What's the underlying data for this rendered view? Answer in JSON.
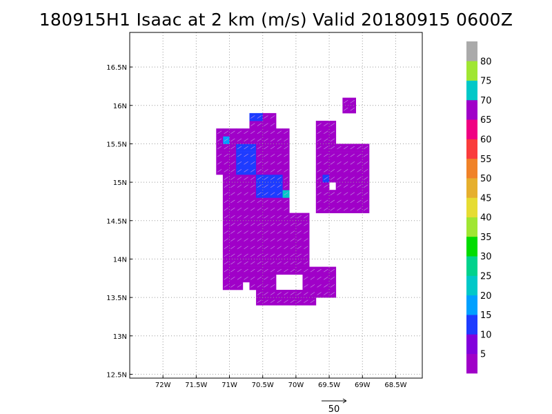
{
  "title": "180915H1 Isaac at 2 km (m/s) Valid 20180915 0600Z",
  "chart_data": {
    "type": "heatmap",
    "title": "180915H1 Isaac at 2 km (m/s) Valid 20180915 0600Z",
    "xlabel": "",
    "ylabel": "",
    "xlim": [
      -72.5,
      -68.1
    ],
    "ylim": [
      12.45,
      16.95
    ],
    "x_ticks": [
      {
        "value": -72.0,
        "label": "72W"
      },
      {
        "value": -71.5,
        "label": "71.5W"
      },
      {
        "value": -71.0,
        "label": "71W"
      },
      {
        "value": -70.5,
        "label": "70.5W"
      },
      {
        "value": -70.0,
        "label": "70W"
      },
      {
        "value": -69.5,
        "label": "69.5W"
      },
      {
        "value": -69.0,
        "label": "69W"
      },
      {
        "value": -68.5,
        "label": "68.5W"
      }
    ],
    "y_ticks": [
      {
        "value": 12.5,
        "label": "12.5N"
      },
      {
        "value": 13.0,
        "label": "13N"
      },
      {
        "value": 13.5,
        "label": "13.5N"
      },
      {
        "value": 14.0,
        "label": "14N"
      },
      {
        "value": 14.5,
        "label": "14.5N"
      },
      {
        "value": 15.0,
        "label": "15N"
      },
      {
        "value": 15.5,
        "label": "15.5N"
      },
      {
        "value": 16.0,
        "label": "16N"
      },
      {
        "value": 16.5,
        "label": "16.5N"
      }
    ],
    "grid": true,
    "cell_size_deg": 0.1,
    "regions": [
      {
        "lon": [
          -71.1,
          -70.1
        ],
        "lat": [
          14.0,
          15.7
        ],
        "speed": 3
      },
      {
        "lon": [
          -71.2,
          -70.4
        ],
        "lat": [
          15.05,
          15.6
        ],
        "speed": 3
      },
      {
        "lon": [
          -70.6,
          -69.8
        ],
        "lat": [
          13.4,
          14.6
        ],
        "speed": 3
      },
      {
        "lon": [
          -71.1,
          -70.5
        ],
        "lat": [
          13.6,
          14.2
        ],
        "speed": 3
      },
      {
        "lon": [
          -70.2,
          -69.75
        ],
        "lat": [
          13.4,
          13.9
        ],
        "speed": 3
      },
      {
        "lon": [
          -69.7,
          -69.4
        ],
        "lat": [
          13.5,
          13.85
        ],
        "speed": 3
      },
      {
        "lon": [
          -69.75,
          -68.9
        ],
        "lat": [
          14.55,
          15.5
        ],
        "speed": 3
      },
      {
        "lon": [
          -69.75,
          -69.35
        ],
        "lat": [
          15.2,
          15.75
        ],
        "speed": 3
      },
      {
        "lon": [
          -69.35,
          -69.15
        ],
        "lat": [
          15.85,
          16.05
        ],
        "speed": 3
      },
      {
        "lon": [
          -70.7,
          -70.35
        ],
        "lat": [
          15.45,
          15.95
        ],
        "speed": 3
      }
    ],
    "holes": [
      {
        "lon": [
          -70.35,
          -69.9
        ],
        "lat": [
          13.55,
          13.75
        ]
      },
      {
        "lon": [
          -70.8,
          -70.7
        ],
        "lat": [
          13.6,
          13.7
        ]
      },
      {
        "lon": [
          -69.55,
          -69.45
        ],
        "lat": [
          14.9,
          15.0
        ]
      }
    ],
    "patches": [
      {
        "lon": [
          -70.9,
          -70.6
        ],
        "lat": [
          15.1,
          15.5
        ],
        "speed": 13
      },
      {
        "lon": [
          -70.75,
          -70.55
        ],
        "lat": [
          15.75,
          15.95
        ],
        "speed": 13
      },
      {
        "lon": [
          -70.6,
          -70.2
        ],
        "lat": [
          14.8,
          15.1
        ],
        "speed": 13
      },
      {
        "lon": [
          -71.1,
          -71.0
        ],
        "lat": [
          15.5,
          15.6
        ],
        "speed": 17
      },
      {
        "lon": [
          -70.2,
          -70.1
        ],
        "lat": [
          14.8,
          14.9
        ],
        "speed": 22
      },
      {
        "lon": [
          -69.65,
          -69.55
        ],
        "lat": [
          15.0,
          15.1
        ],
        "speed": 13
      }
    ],
    "vector_reference": {
      "value": 50,
      "label": "50"
    },
    "colorbar": {
      "levels": [
        0,
        5,
        10,
        15,
        20,
        25,
        30,
        35,
        40,
        45,
        50,
        55,
        60,
        65,
        70,
        75,
        80,
        85
      ],
      "labels": [
        "5",
        "10",
        "15",
        "20",
        "25",
        "30",
        "35",
        "40",
        "45",
        "50",
        "55",
        "60",
        "65",
        "70",
        "75",
        "80"
      ],
      "colors": [
        "#a000c8",
        "#8200dc",
        "#1e3cff",
        "#00a0ff",
        "#00c8c8",
        "#00d28c",
        "#00dc00",
        "#a0e632",
        "#e6dc32",
        "#e6af2d",
        "#f08228",
        "#fa3c3c",
        "#f00082",
        "#a000c8",
        "#00c8c8",
        "#a0e632",
        "#aaaaaa"
      ]
    }
  }
}
